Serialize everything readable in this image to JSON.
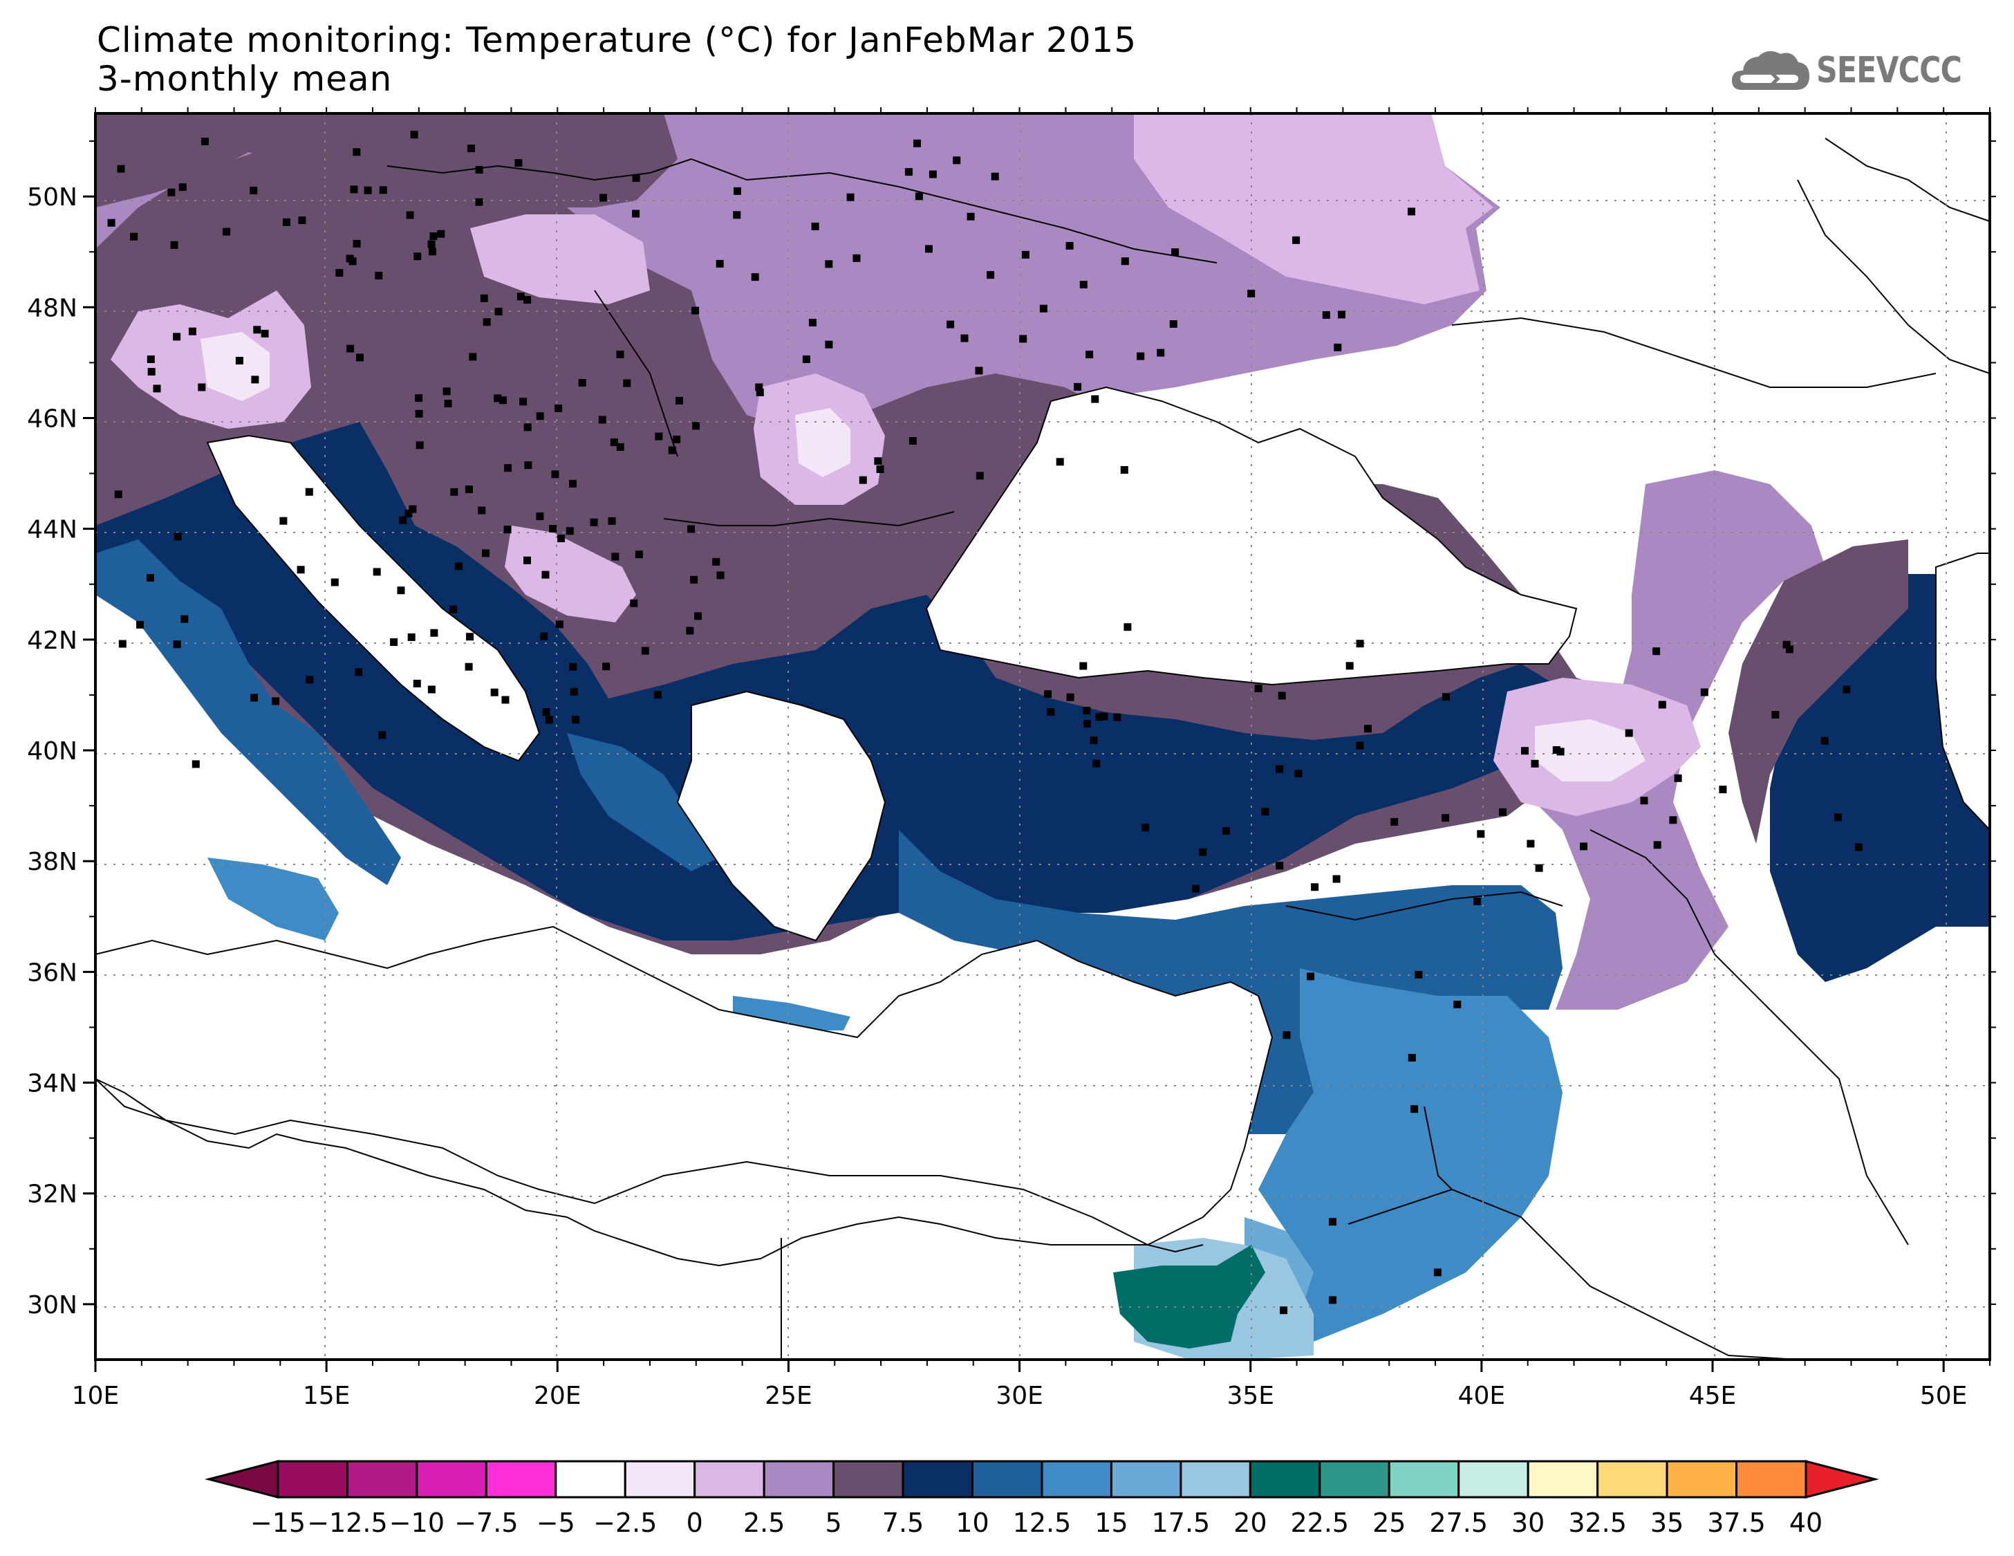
{
  "header": {
    "title": "Climate monitoring: Temperature (°C) for JanFebMar 2015",
    "subtitle": "3-monthly mean",
    "logo_text": "SEEVCCC"
  },
  "axes": {
    "lon_ticks": [
      "10E",
      "15E",
      "20E",
      "25E",
      "30E",
      "35E",
      "40E",
      "45E",
      "50E"
    ],
    "lat_ticks": [
      "50N",
      "48N",
      "46N",
      "44N",
      "42N",
      "40N",
      "38N",
      "36N",
      "34N",
      "32N",
      "30N"
    ],
    "lon_range": [
      10,
      51
    ],
    "lat_range": [
      29,
      51.5
    ]
  },
  "legend": {
    "labels": [
      "−15",
      "−12.5",
      "−10",
      "−7.5",
      "−5",
      "−2.5",
      "0",
      "2.5",
      "5",
      "7.5",
      "10",
      "12.5",
      "15",
      "17.5",
      "20",
      "22.5",
      "25",
      "27.5",
      "30",
      "32.5",
      "35",
      "37.5",
      "40"
    ],
    "colors": [
      "#990d5e",
      "#b21a86",
      "#d91fb4",
      "#ff2ed9",
      "#ffffff",
      "#f2e6f7",
      "#dbb8e6",
      "#aa88c2",
      "#694f6e",
      "#0a2f66",
      "#1f5f9c",
      "#3f8bc6",
      "#6aaad6",
      "#99c6e0",
      "#006e66",
      "#2e9688",
      "#7fd4c4",
      "#c6ece4",
      "#fff8c4",
      "#ffd97a",
      "#ffb347",
      "#ff8c3a",
      "#ff5a2e",
      "#e8202a"
    ],
    "end_low_color": "#7a0a44",
    "end_high_color": "#e8202a"
  },
  "colors": {
    "frame": "#000000",
    "grid": "#888888",
    "land_outline": "#000000",
    "station": "#000000"
  }
}
